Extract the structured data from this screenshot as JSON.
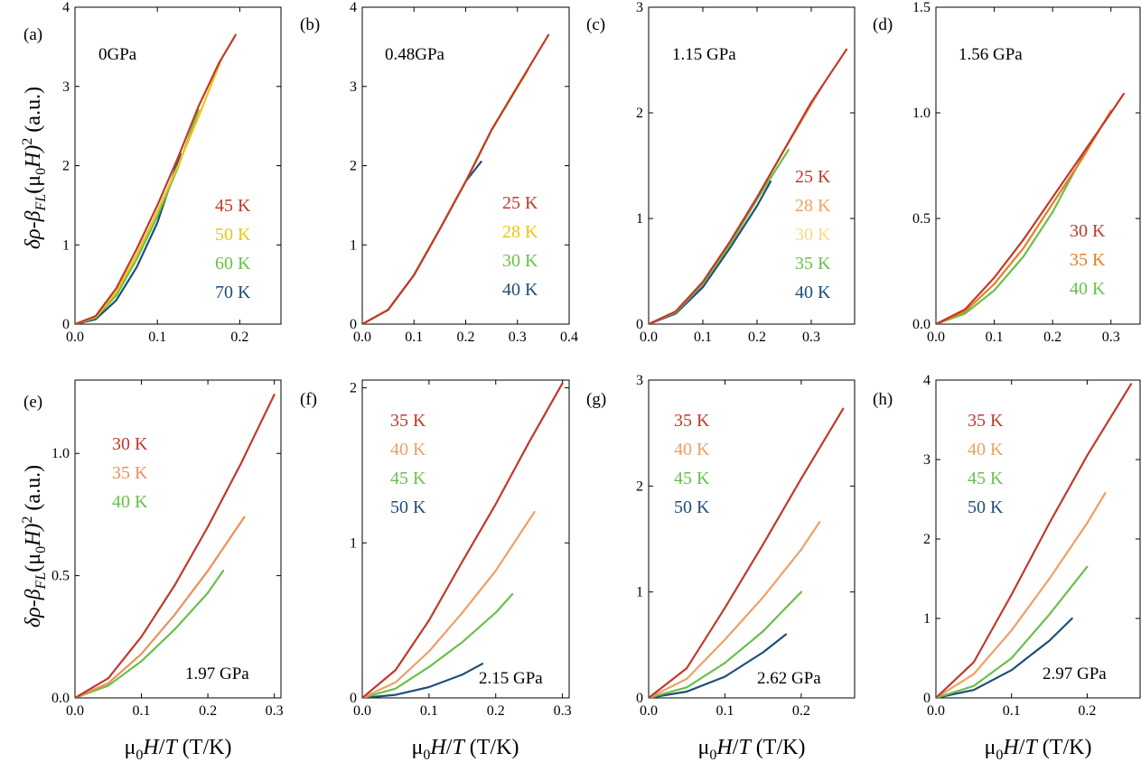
{
  "figure": {
    "ylabel_rows": [
      "δρ-β",
      "FL",
      "(μ",
      "0",
      "H)",
      "2",
      " (a.u.)"
    ],
    "xlabel_parts": [
      "μ",
      "0",
      "H",
      "/",
      "T",
      " (T/K)"
    ]
  },
  "chart_data": [
    {
      "type": "line",
      "panel_label": "(a)",
      "pressure": "0GPa",
      "xlim": [
        0,
        0.25
      ],
      "ylim": [
        0,
        4
      ],
      "xticks": [
        0.0,
        0.1,
        0.2
      ],
      "xtick_labels": [
        "0.0",
        "0.1",
        "0.2"
      ],
      "yticks": [
        0,
        1,
        2,
        3,
        4
      ],
      "ytick_labels": [
        "0",
        "1",
        "2",
        "3",
        "4"
      ],
      "series": [
        {
          "name": "45 K",
          "color": "#c0392b",
          "x": [
            0,
            0.025,
            0.05,
            0.075,
            0.1,
            0.125,
            0.15,
            0.175,
            0.195
          ],
          "y": [
            0,
            0.1,
            0.45,
            0.95,
            1.5,
            2.1,
            2.75,
            3.3,
            3.65
          ]
        },
        {
          "name": "50 K",
          "color": "#f1c40f",
          "x": [
            0,
            0.025,
            0.05,
            0.075,
            0.1,
            0.125,
            0.15,
            0.178
          ],
          "y": [
            0,
            0.09,
            0.4,
            0.88,
            1.42,
            2.0,
            2.62,
            3.35
          ]
        },
        {
          "name": "60 K",
          "color": "#6abf4b",
          "x": [
            0,
            0.025,
            0.05,
            0.075,
            0.1,
            0.125,
            0.15
          ],
          "y": [
            0,
            0.08,
            0.36,
            0.82,
            1.36,
            1.98,
            2.7
          ]
        },
        {
          "name": "70 K",
          "color": "#1f4e79",
          "x": [
            0,
            0.025,
            0.05,
            0.075,
            0.1,
            0.128
          ],
          "y": [
            0,
            0.06,
            0.3,
            0.72,
            1.28,
            2.15
          ]
        }
      ]
    },
    {
      "type": "line",
      "panel_label": "(b)",
      "pressure": "0.48GPa",
      "xlim": [
        0,
        0.4
      ],
      "ylim": [
        0,
        4
      ],
      "xticks": [
        0.0,
        0.1,
        0.2,
        0.3,
        0.4
      ],
      "xtick_labels": [
        "0.0",
        "0.1",
        "0.2",
        "0.3",
        "0.4"
      ],
      "yticks": [
        0,
        1,
        2,
        3,
        4
      ],
      "ytick_labels": [
        "0",
        "1",
        "2",
        "3",
        "4"
      ],
      "series": [
        {
          "name": "25 K",
          "color": "#c0392b",
          "x": [
            0,
            0.05,
            0.1,
            0.15,
            0.2,
            0.25,
            0.3,
            0.36
          ],
          "y": [
            0,
            0.18,
            0.62,
            1.2,
            1.8,
            2.45,
            3.0,
            3.65
          ]
        },
        {
          "name": "28 K",
          "color": "#f1c40f",
          "x": [
            0,
            0.05,
            0.1,
            0.15,
            0.2,
            0.25,
            0.32
          ],
          "y": [
            0,
            0.18,
            0.62,
            1.2,
            1.8,
            2.45,
            3.2
          ]
        },
        {
          "name": "30 K",
          "color": "#6abf4b",
          "x": [
            0,
            0.05,
            0.1,
            0.15,
            0.2,
            0.25,
            0.3
          ],
          "y": [
            0,
            0.18,
            0.62,
            1.2,
            1.8,
            2.45,
            3.0
          ]
        },
        {
          "name": "40 K",
          "color": "#1f4e79",
          "x": [
            0,
            0.05,
            0.1,
            0.15,
            0.2,
            0.23
          ],
          "y": [
            0,
            0.18,
            0.62,
            1.2,
            1.8,
            2.05
          ]
        }
      ]
    },
    {
      "type": "line",
      "panel_label": "(c)",
      "pressure": "1.15 GPa",
      "xlim": [
        0,
        0.38
      ],
      "ylim": [
        0,
        3
      ],
      "xticks": [
        0.0,
        0.1,
        0.2,
        0.3
      ],
      "xtick_labels": [
        "0.0",
        "0.1",
        "0.2",
        "0.3"
      ],
      "yticks": [
        0,
        1,
        2,
        3
      ],
      "ytick_labels": [
        "0",
        "1",
        "2",
        "3"
      ],
      "series": [
        {
          "name": "25 K",
          "color": "#c0392b",
          "x": [
            0,
            0.05,
            0.1,
            0.15,
            0.2,
            0.25,
            0.3,
            0.365
          ],
          "y": [
            0,
            0.12,
            0.4,
            0.78,
            1.2,
            1.65,
            2.1,
            2.6
          ]
        },
        {
          "name": "28 K",
          "color": "#f0a060",
          "x": [
            0,
            0.05,
            0.1,
            0.15,
            0.2,
            0.25,
            0.32
          ],
          "y": [
            0,
            0.12,
            0.4,
            0.78,
            1.2,
            1.65,
            2.25
          ]
        },
        {
          "name": "30 K",
          "color": "#f8dc80",
          "x": [
            0,
            0.05,
            0.1,
            0.15,
            0.2,
            0.25,
            0.3
          ],
          "y": [
            0,
            0.12,
            0.4,
            0.78,
            1.2,
            1.65,
            2.1
          ]
        },
        {
          "name": "35 K",
          "color": "#6abf4b",
          "x": [
            0,
            0.05,
            0.1,
            0.15,
            0.2,
            0.258
          ],
          "y": [
            0,
            0.11,
            0.38,
            0.75,
            1.18,
            1.65
          ]
        },
        {
          "name": "40 K",
          "color": "#1f4e79",
          "x": [
            0,
            0.05,
            0.1,
            0.15,
            0.2,
            0.225
          ],
          "y": [
            0,
            0.1,
            0.35,
            0.72,
            1.12,
            1.35
          ]
        }
      ]
    },
    {
      "type": "line",
      "panel_label": "(d)",
      "pressure": "1.56 GPa",
      "xlim": [
        0,
        0.35
      ],
      "ylim": [
        0,
        1.5
      ],
      "xticks": [
        0.0,
        0.1,
        0.2,
        0.3
      ],
      "xtick_labels": [
        "0.0",
        "0.1",
        "0.2",
        "0.3"
      ],
      "yticks": [
        0.0,
        0.5,
        1.0,
        1.5
      ],
      "ytick_labels": [
        "0.0",
        "0.5",
        "1.0",
        "1.5"
      ],
      "series": [
        {
          "name": "30 K",
          "color": "#c0392b",
          "x": [
            0,
            0.05,
            0.1,
            0.15,
            0.2,
            0.25,
            0.3,
            0.322
          ],
          "y": [
            0,
            0.07,
            0.22,
            0.4,
            0.6,
            0.8,
            1.0,
            1.09
          ]
        },
        {
          "name": "35 K",
          "color": "#e67e22",
          "x": [
            0,
            0.05,
            0.1,
            0.15,
            0.2,
            0.25,
            0.3
          ],
          "y": [
            0,
            0.06,
            0.19,
            0.36,
            0.57,
            0.78,
            1.01
          ]
        },
        {
          "name": "40 K",
          "color": "#6abf4b",
          "x": [
            0,
            0.05,
            0.1,
            0.15,
            0.2,
            0.262
          ],
          "y": [
            0,
            0.05,
            0.16,
            0.32,
            0.53,
            0.85
          ]
        }
      ]
    },
    {
      "type": "line",
      "panel_label": "(e)",
      "pressure": "1.97 GPa",
      "xlim": [
        0,
        0.31
      ],
      "ylim": [
        0,
        1.3
      ],
      "xticks": [
        0.0,
        0.1,
        0.2,
        0.3
      ],
      "xtick_labels": [
        "0.0",
        "0.1",
        "0.2",
        "0.3"
      ],
      "yticks": [
        0.0,
        0.5,
        1.0
      ],
      "ytick_labels": [
        "0.0",
        "0.5",
        "1.0"
      ],
      "series": [
        {
          "name": "30 K",
          "color": "#c0392b",
          "x": [
            0,
            0.05,
            0.1,
            0.15,
            0.2,
            0.25,
            0.3
          ],
          "y": [
            0,
            0.08,
            0.25,
            0.46,
            0.7,
            0.96,
            1.24
          ]
        },
        {
          "name": "35 K",
          "color": "#e8915a",
          "x": [
            0,
            0.05,
            0.1,
            0.15,
            0.2,
            0.255
          ],
          "y": [
            0,
            0.06,
            0.18,
            0.34,
            0.52,
            0.74
          ]
        },
        {
          "name": "40 K",
          "color": "#6abf4b",
          "x": [
            0,
            0.05,
            0.1,
            0.15,
            0.2,
            0.223
          ],
          "y": [
            0,
            0.05,
            0.15,
            0.28,
            0.43,
            0.52
          ]
        }
      ]
    },
    {
      "type": "line",
      "panel_label": "(f)",
      "pressure": "2.15 GPa",
      "xlim": [
        0,
        0.31
      ],
      "ylim": [
        0,
        2.05
      ],
      "xticks": [
        0.0,
        0.1,
        0.2,
        0.3
      ],
      "xtick_labels": [
        "0.0",
        "0.1",
        "0.2",
        "0.3"
      ],
      "yticks": [
        0,
        1,
        2
      ],
      "ytick_labels": [
        "0",
        "1",
        "2"
      ],
      "series": [
        {
          "name": "35 K",
          "color": "#c0392b",
          "x": [
            0,
            0.05,
            0.1,
            0.15,
            0.2,
            0.25,
            0.3
          ],
          "y": [
            0,
            0.18,
            0.5,
            0.88,
            1.25,
            1.65,
            2.03
          ]
        },
        {
          "name": "40 K",
          "color": "#eea066",
          "x": [
            0,
            0.05,
            0.1,
            0.15,
            0.2,
            0.258
          ],
          "y": [
            0,
            0.1,
            0.3,
            0.55,
            0.82,
            1.2
          ]
        },
        {
          "name": "45 K",
          "color": "#6abf4b",
          "x": [
            0,
            0.05,
            0.1,
            0.15,
            0.2,
            0.225
          ],
          "y": [
            0,
            0.06,
            0.2,
            0.36,
            0.55,
            0.67
          ]
        },
        {
          "name": "50 K",
          "color": "#1f4e79",
          "x": [
            0,
            0.05,
            0.1,
            0.15,
            0.18
          ],
          "y": [
            0,
            0.02,
            0.07,
            0.15,
            0.22
          ]
        }
      ]
    },
    {
      "type": "line",
      "panel_label": "(g)",
      "pressure": "2.62 GPa",
      "xlim": [
        0,
        0.27
      ],
      "ylim": [
        0,
        3
      ],
      "xticks": [
        0.0,
        0.1,
        0.2
      ],
      "xtick_labels": [
        "0.0",
        "0.1",
        "0.2"
      ],
      "yticks": [
        0,
        1,
        2,
        3
      ],
      "ytick_labels": [
        "0",
        "1",
        "2",
        "3"
      ],
      "series": [
        {
          "name": "35 K",
          "color": "#c0392b",
          "x": [
            0,
            0.05,
            0.1,
            0.15,
            0.2,
            0.255
          ],
          "y": [
            0,
            0.28,
            0.85,
            1.45,
            2.07,
            2.73
          ]
        },
        {
          "name": "40 K",
          "color": "#eea066",
          "x": [
            0,
            0.05,
            0.1,
            0.15,
            0.2,
            0.224
          ],
          "y": [
            0,
            0.18,
            0.55,
            0.95,
            1.4,
            1.66
          ]
        },
        {
          "name": "45 K",
          "color": "#6abf4b",
          "x": [
            0,
            0.05,
            0.1,
            0.15,
            0.2
          ],
          "y": [
            0,
            0.1,
            0.33,
            0.63,
            1.0
          ]
        },
        {
          "name": "50 K",
          "color": "#1f4e79",
          "x": [
            0,
            0.05,
            0.1,
            0.15,
            0.18
          ],
          "y": [
            0,
            0.06,
            0.2,
            0.43,
            0.6
          ]
        }
      ]
    },
    {
      "type": "line",
      "panel_label": "(h)",
      "pressure": "2.97 GPa",
      "xlim": [
        0,
        0.27
      ],
      "ylim": [
        0,
        4
      ],
      "xticks": [
        0.0,
        0.1,
        0.2
      ],
      "xtick_labels": [
        "0.0",
        "0.1",
        "0.2"
      ],
      "yticks": [
        0,
        1,
        2,
        3,
        4
      ],
      "ytick_labels": [
        "0",
        "1",
        "2",
        "3",
        "4"
      ],
      "series": [
        {
          "name": "35 K",
          "color": "#c0392b",
          "x": [
            0,
            0.05,
            0.1,
            0.15,
            0.2,
            0.258
          ],
          "y": [
            0,
            0.45,
            1.3,
            2.2,
            3.05,
            3.95
          ]
        },
        {
          "name": "40 K",
          "color": "#eea066",
          "x": [
            0,
            0.05,
            0.1,
            0.15,
            0.2,
            0.224
          ],
          "y": [
            0,
            0.3,
            0.85,
            1.5,
            2.2,
            2.58
          ]
        },
        {
          "name": "45 K",
          "color": "#6abf4b",
          "x": [
            0,
            0.05,
            0.1,
            0.15,
            0.2
          ],
          "y": [
            0,
            0.15,
            0.5,
            1.05,
            1.65
          ]
        },
        {
          "name": "50 K",
          "color": "#1f4e79",
          "x": [
            0,
            0.05,
            0.1,
            0.15,
            0.18
          ],
          "y": [
            0,
            0.1,
            0.35,
            0.72,
            1.0
          ]
        }
      ]
    }
  ]
}
